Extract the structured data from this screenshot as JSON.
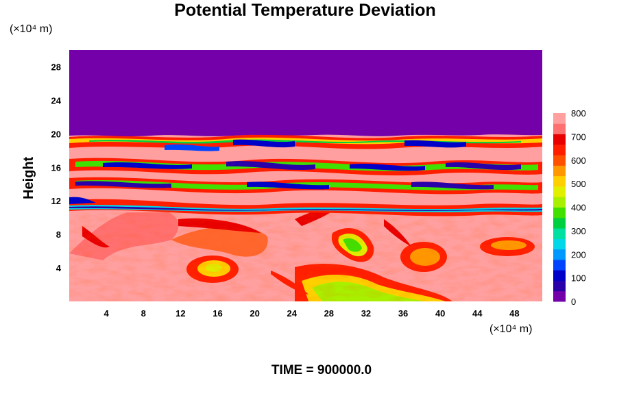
{
  "chart_data": {
    "type": "heatmap",
    "title": "Potential Temperature Deviation",
    "ylabel": "Height",
    "x_unit": "(×10⁴ m)",
    "y_unit": "(×10⁴ m)",
    "footer": "TIME = 900000.0",
    "x_ticks": [
      4,
      8,
      12,
      16,
      20,
      24,
      28,
      32,
      36,
      40,
      44,
      48
    ],
    "y_ticks": [
      4,
      8,
      12,
      16,
      20,
      24,
      28
    ],
    "xlim": [
      0,
      51
    ],
    "ylim": [
      0,
      30
    ],
    "colorbar": {
      "min": 0,
      "max": 800,
      "ticks": [
        0,
        100,
        200,
        300,
        400,
        500,
        600,
        700,
        800
      ],
      "colors": [
        "#7300a8",
        "#2a00a8",
        "#0000c8",
        "#0044ff",
        "#0099ff",
        "#00d8e8",
        "#00e0a0",
        "#00d040",
        "#40e000",
        "#a8f000",
        "#e0f000",
        "#ffd000",
        "#ff9800",
        "#ff5000",
        "#ff1e00",
        "#e80000",
        "#ff7070",
        "#ff9f9f"
      ]
    },
    "regions": {
      "upper_value": 0,
      "upper_description_level_top": [
        20,
        30
      ],
      "layered_band_y": [
        10.5,
        20
      ],
      "lower_background_value": 800
    }
  }
}
